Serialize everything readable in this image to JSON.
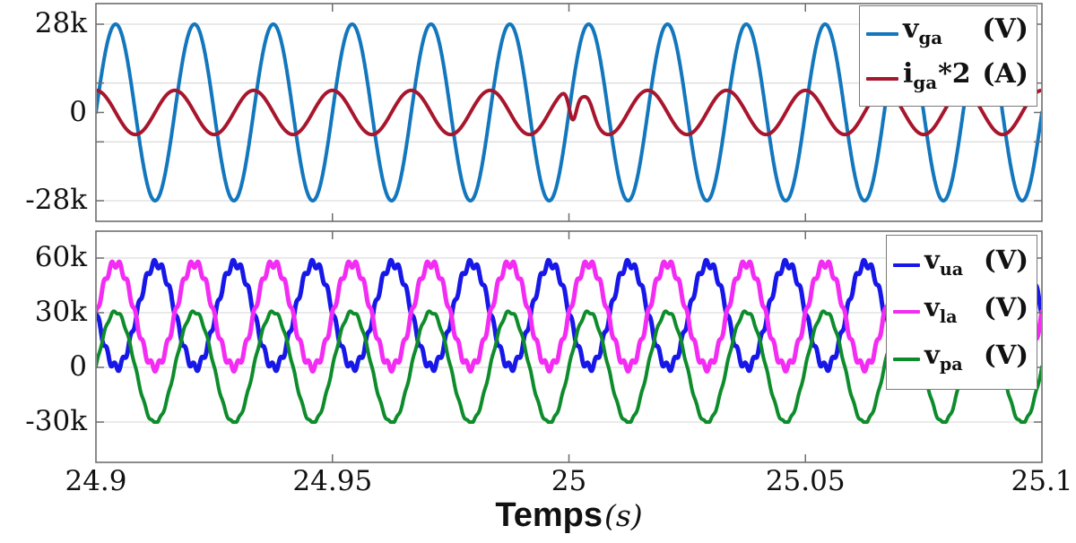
{
  "figure": {
    "bg": "#ffffff",
    "axis_color": "#6e6e6e",
    "grid_color": "#dedede",
    "text_color": "#111111"
  },
  "xlabel": {
    "main": "Temps",
    "unit": "(s)"
  },
  "chart_data": [
    {
      "type": "line",
      "title": "",
      "xlabel": "Temps (s)",
      "x_range": [
        24.9,
        25.1
      ],
      "x_ticks": [
        {
          "value": 24.9,
          "label": "24.9"
        },
        {
          "value": 24.95,
          "label": "24.95"
        },
        {
          "value": 25,
          "label": "25"
        },
        {
          "value": 25.05,
          "label": "25.05"
        },
        {
          "value": 25.1,
          "label": "25.1"
        }
      ],
      "y_ticks": [
        {
          "value": 28000,
          "label": "28k"
        },
        {
          "value": 0,
          "label": "0"
        },
        {
          "value": -28000,
          "label": "-28k"
        }
      ],
      "grid_values": [
        28000,
        9333,
        -9333,
        -28000
      ],
      "ylim": [
        -34500,
        34500
      ],
      "grid": "horizontal",
      "legend_position": "top-right",
      "series": [
        {
          "name": "v_ga (V)",
          "legend": {
            "var": "v",
            "sub": "ga",
            "mult": "",
            "unit": "(V)"
          },
          "color": "#1377bd",
          "offset": 0,
          "amplitude": 28000,
          "freq_hz": 60,
          "phase_deg": 0,
          "t0": 24.9
        },
        {
          "name": "i_ga*2 (A)",
          "legend": {
            "var": "i",
            "sub": "ga",
            "mult": "*2",
            "unit": "(A)"
          },
          "color": "#a8162d",
          "offset": 0,
          "amplitude": 7000,
          "freq_hz": 60,
          "phase_deg": 90,
          "t0": 24.9,
          "glitches": [
            {
              "amp": -9000,
              "center": 25.0008,
              "sigma": 0.0011
            },
            {
              "amp": 4000,
              "center": 25.0042,
              "sigma": 0.0015
            }
          ]
        }
      ]
    },
    {
      "type": "line",
      "title": "",
      "xlabel": "Temps (s)",
      "x_range": [
        24.9,
        25.1
      ],
      "y_ticks": [
        {
          "value": 60000,
          "label": "60k"
        },
        {
          "value": 30000,
          "label": "30k"
        },
        {
          "value": 0,
          "label": "0"
        },
        {
          "value": -30000,
          "label": "-30k"
        }
      ],
      "grid_values": [
        60000,
        30000,
        0,
        -30000
      ],
      "ylim": [
        -52000,
        75000
      ],
      "grid": "horizontal",
      "legend_position": "top-right",
      "series": [
        {
          "name": "v_ua (V)",
          "legend": {
            "var": "v",
            "sub": "ua",
            "mult": "",
            "unit": "(V)"
          },
          "color": "#1717e8",
          "offset": 28500,
          "amplitude": 28500,
          "freq_hz": 60,
          "phase_deg": 175,
          "t0": 24.9,
          "ripple": {
            "amp": 2200,
            "mult": 10,
            "phase_deg": 0
          }
        },
        {
          "name": "v_la (V)",
          "legend": {
            "var": "v",
            "sub": "la",
            "mult": "",
            "unit": "(V)"
          },
          "color": "#f32cf3",
          "offset": 28500,
          "amplitude": 28500,
          "freq_hz": 60,
          "phase_deg": 0,
          "t0": 24.9,
          "ripple": {
            "amp": 2200,
            "mult": 10,
            "phase_deg": 90
          }
        },
        {
          "name": "v_pa (V)",
          "legend": {
            "var": "v",
            "sub": "pa",
            "mult": "",
            "unit": "(V)"
          },
          "color": "#0e8c2b",
          "offset": 0,
          "amplitude": 30500,
          "freq_hz": 60,
          "phase_deg": 0,
          "t0": 24.9,
          "clip_min": -30000,
          "ripple": {
            "amp": 800,
            "mult": 10,
            "phase_deg": 30
          }
        }
      ]
    }
  ]
}
